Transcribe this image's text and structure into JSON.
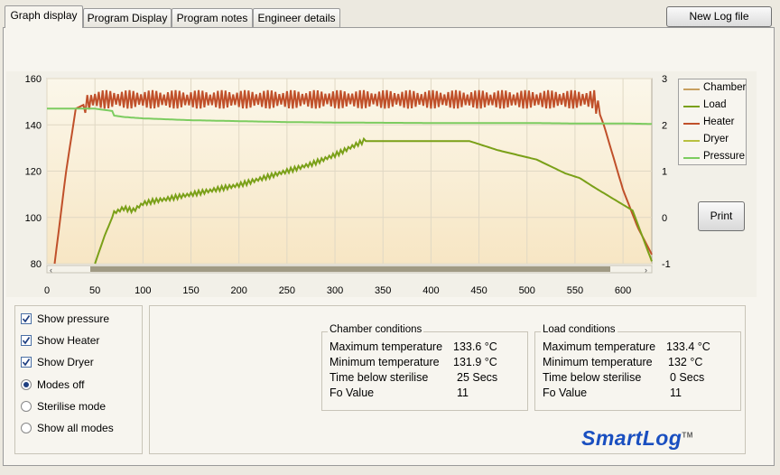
{
  "tabs": [
    {
      "label": "Graph display",
      "active": true
    },
    {
      "label": "Program Display",
      "active": false
    },
    {
      "label": "Program notes",
      "active": false
    },
    {
      "label": "Engineer details",
      "active": false
    }
  ],
  "toolbar": {
    "new_log_label": "New Log file"
  },
  "print_label": "Print",
  "legend": [
    {
      "name": "Chamber",
      "color": "#c8a060"
    },
    {
      "name": "Load",
      "color": "#7aa018"
    },
    {
      "name": "Heater",
      "color": "#c0502a"
    },
    {
      "name": "Dryer",
      "color": "#b8c040"
    },
    {
      "name": "Pressure",
      "color": "#7ccc60"
    }
  ],
  "options": [
    {
      "label": "Show pressure",
      "type": "checkbox",
      "checked": true
    },
    {
      "label": "Show Heater",
      "type": "checkbox",
      "checked": true
    },
    {
      "label": "Show Dryer",
      "type": "checkbox",
      "checked": true
    },
    {
      "label": "Modes off",
      "type": "radio",
      "checked": true
    },
    {
      "label": "Sterilise mode",
      "type": "radio",
      "checked": false
    },
    {
      "label": "Show all modes",
      "type": "radio",
      "checked": false
    }
  ],
  "chamber": {
    "title": "Chamber conditions",
    "rows": [
      {
        "label": "Maximum temperature",
        "value": "133.6 °C"
      },
      {
        "label": "Minimum temperature",
        "value": "131.9 °C"
      },
      {
        "label": "Time below sterilise",
        "value": "25 Secs"
      },
      {
        "label": "Fo Value",
        "value": "11"
      }
    ]
  },
  "load": {
    "title": "Load conditions",
    "rows": [
      {
        "label": "Maximum temperature",
        "value": "133.4 °C"
      },
      {
        "label": "Minimum temperature",
        "value": "132 °C"
      },
      {
        "label": "Time below sterilise",
        "value": "0 Secs"
      },
      {
        "label": "Fo Value",
        "value": "11"
      }
    ]
  },
  "brand": {
    "name": "SmartLog",
    "tm": "TM"
  },
  "chart_data": {
    "type": "line",
    "xlim": [
      0,
      630
    ],
    "ylim": [
      80,
      160
    ],
    "y2lim": [
      -1,
      3
    ],
    "x_ticks": [
      0,
      50,
      100,
      150,
      200,
      250,
      300,
      350,
      400,
      450,
      500,
      550,
      600
    ],
    "y_ticks": [
      80,
      100,
      120,
      140,
      160
    ],
    "y2_ticks": [
      -1,
      0,
      1,
      2,
      3
    ],
    "grid": true,
    "legend_position": "right",
    "series": [
      {
        "name": "Heater",
        "color": "#c0502a",
        "axis": "left",
        "points": [
          [
            8,
            80
          ],
          [
            20,
            120
          ],
          [
            30,
            147
          ],
          [
            40,
            149
          ],
          [
            50,
            151
          ],
          [
            60,
            151
          ],
          [
            70,
            151
          ],
          [
            80,
            151
          ],
          [
            100,
            151
          ],
          [
            150,
            151
          ],
          [
            200,
            151
          ],
          [
            250,
            151
          ],
          [
            300,
            151
          ],
          [
            350,
            151
          ],
          [
            400,
            151
          ],
          [
            450,
            151
          ],
          [
            500,
            151
          ],
          [
            550,
            151
          ],
          [
            570,
            151
          ],
          [
            580,
            140
          ],
          [
            600,
            112
          ],
          [
            615,
            96
          ],
          [
            630,
            84
          ]
        ],
        "oscillate": [
          40,
          575,
          4
        ]
      },
      {
        "name": "Pressure",
        "color": "#7ccc60",
        "axis": "right",
        "points": [
          [
            0,
            2.35
          ],
          [
            20,
            2.35
          ],
          [
            50,
            2.35
          ],
          [
            68,
            2.3
          ],
          [
            70,
            2.2
          ],
          [
            80,
            2.17
          ],
          [
            100,
            2.14
          ],
          [
            150,
            2.1
          ],
          [
            200,
            2.08
          ],
          [
            250,
            2.06
          ],
          [
            300,
            2.05
          ],
          [
            400,
            2.04
          ],
          [
            500,
            2.04
          ],
          [
            550,
            2.03
          ],
          [
            600,
            2.03
          ],
          [
            630,
            2.02
          ]
        ]
      },
      {
        "name": "Load",
        "color": "#7aa018",
        "axis": "left",
        "points": [
          [
            50,
            80
          ],
          [
            60,
            92
          ],
          [
            70,
            102
          ],
          [
            80,
            104
          ],
          [
            90,
            103
          ],
          [
            100,
            106
          ],
          [
            110,
            107
          ],
          [
            125,
            108
          ],
          [
            150,
            110
          ],
          [
            175,
            112
          ],
          [
            200,
            114
          ],
          [
            225,
            117
          ],
          [
            250,
            120
          ],
          [
            275,
            123
          ],
          [
            300,
            127
          ],
          [
            320,
            131
          ],
          [
            330,
            133
          ],
          [
            360,
            133
          ],
          [
            400,
            133
          ],
          [
            440,
            133
          ],
          [
            455,
            131
          ],
          [
            470,
            129
          ],
          [
            490,
            127
          ],
          [
            500,
            126
          ],
          [
            510,
            125
          ],
          [
            525,
            122
          ],
          [
            540,
            119
          ],
          [
            555,
            117
          ],
          [
            570,
            113
          ],
          [
            590,
            108
          ],
          [
            610,
            103
          ],
          [
            630,
            81
          ]
        ],
        "oscillate": [
          70,
          330,
          1
        ]
      }
    ]
  }
}
